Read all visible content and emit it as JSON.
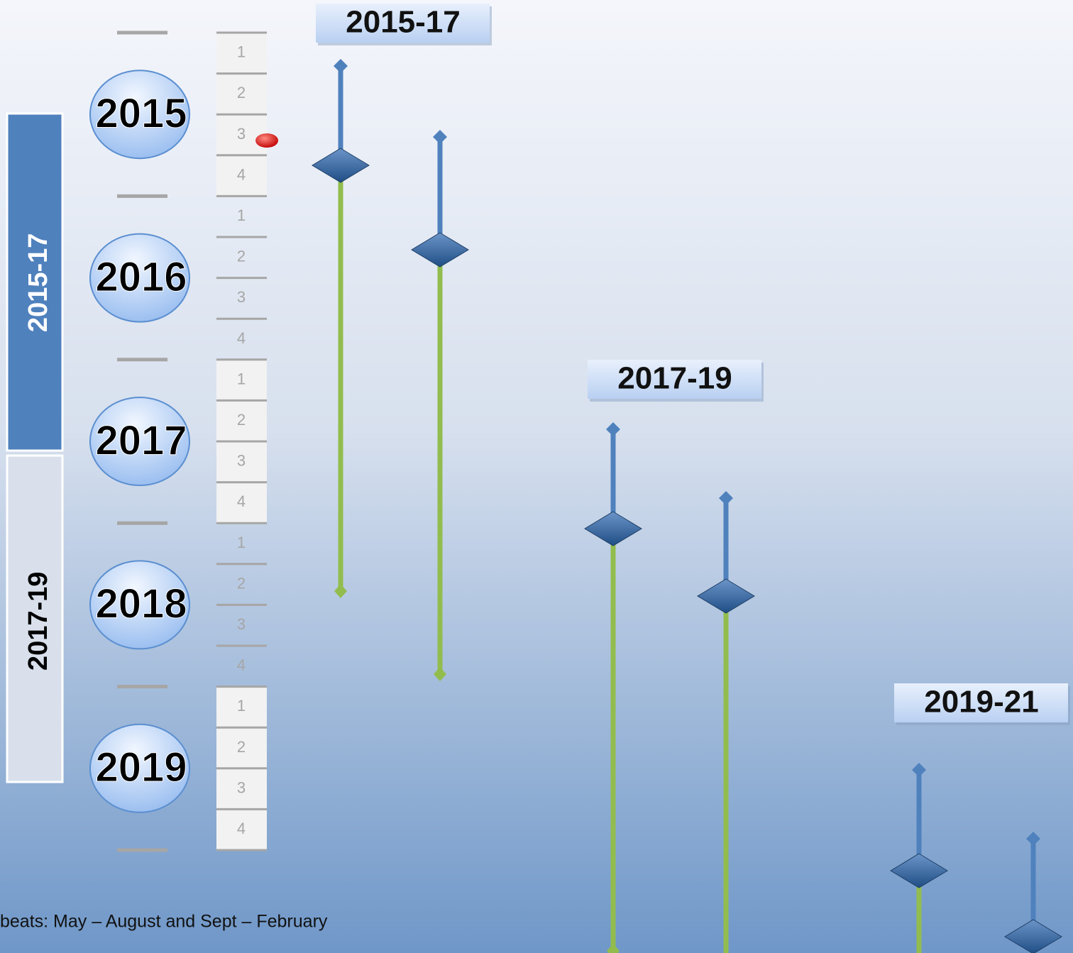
{
  "years": [
    {
      "label": "2015",
      "quarters": [
        "1",
        "2",
        "3",
        "4"
      ]
    },
    {
      "label": "2016",
      "quarters": [
        "1",
        "2",
        "3",
        "4"
      ]
    },
    {
      "label": "2017",
      "quarters": [
        "1",
        "2",
        "3",
        "4"
      ]
    },
    {
      "label": "2018",
      "quarters": [
        "1",
        "2",
        "3",
        "4"
      ]
    },
    {
      "label": "2019",
      "quarters": [
        "1",
        "2",
        "3",
        "4"
      ]
    }
  ],
  "side_periods": [
    "2015-17",
    "2017-19"
  ],
  "period_headers": [
    "2015-17",
    "2017-19",
    "2019-21"
  ],
  "footer": "beats:  May – August and Sept – February"
}
